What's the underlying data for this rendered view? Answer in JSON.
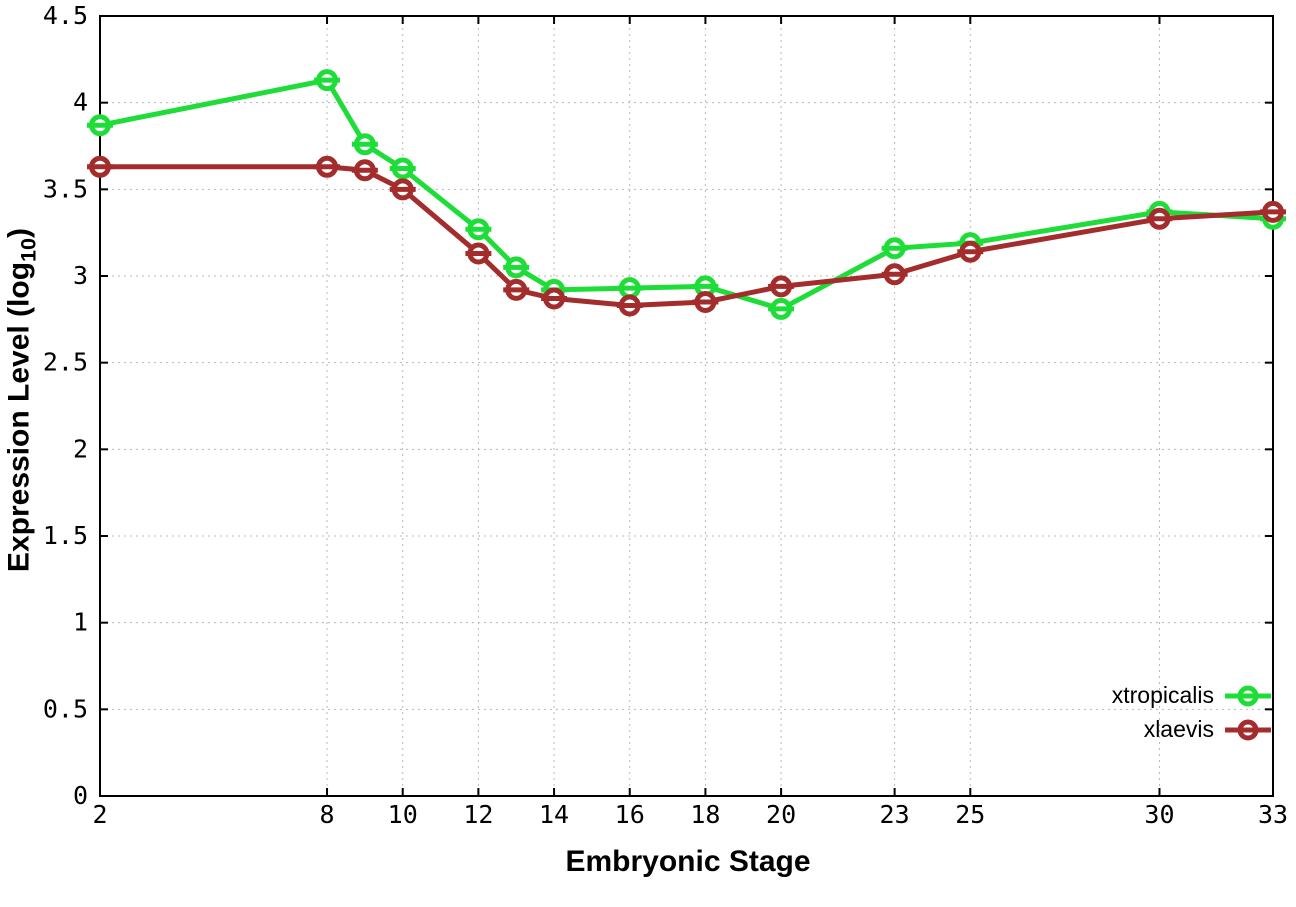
{
  "figure": {
    "background": "#ffffff",
    "frame_color": "#000000",
    "grid_color": "#b8b8b8",
    "tick_label_color": "#000000"
  },
  "axes": {
    "x": {
      "label": "Embryonic Stage",
      "tick_labels": [
        "2",
        "8",
        "10",
        "12",
        "14",
        "16",
        "18",
        "20",
        "23",
        "25",
        "30",
        "33"
      ]
    },
    "y": {
      "label": "Expression Level (log10)",
      "label_parts": {
        "pre": "Expression Level (log",
        "sub": "10",
        "post": ")"
      },
      "tick_labels": [
        "0",
        "0.5",
        "1",
        "1.5",
        "2",
        "2.5",
        "3",
        "3.5",
        "4",
        "4.5"
      ]
    }
  },
  "legend": {
    "items": [
      {
        "label": "xtropicalis",
        "color": "#1fdd38"
      },
      {
        "label": "xlaevis",
        "color": "#a32c2c"
      }
    ]
  },
  "chart_data": {
    "type": "line",
    "title": "",
    "xlabel": "Embryonic Stage",
    "ylabel": "Expression Level (log10)",
    "xlim": [
      2,
      33
    ],
    "ylim": [
      0,
      4.5
    ],
    "xticks": [
      2,
      8,
      10,
      12,
      14,
      16,
      18,
      20,
      23,
      25,
      30,
      33
    ],
    "yticks": [
      0,
      0.5,
      1,
      1.5,
      2,
      2.5,
      3,
      3.5,
      4,
      4.5
    ],
    "grid": true,
    "legend_position": "bottom-right-inside",
    "marker_style": "open-circle-with-horizontal-errorbar-cap",
    "x": [
      2,
      8,
      9,
      10,
      12,
      13,
      14,
      16,
      18,
      20,
      23,
      25,
      30,
      33
    ],
    "series": [
      {
        "name": "xtropicalis",
        "color": "#1fdd38",
        "values": [
          3.87,
          4.13,
          3.76,
          3.62,
          3.27,
          3.05,
          2.92,
          2.93,
          2.94,
          2.81,
          3.16,
          3.19,
          3.37,
          3.33
        ]
      },
      {
        "name": "xlaevis",
        "color": "#a32c2c",
        "values": [
          3.63,
          3.63,
          3.61,
          3.5,
          3.13,
          2.92,
          2.87,
          2.83,
          2.85,
          2.94,
          3.01,
          3.14,
          3.33,
          3.37
        ]
      }
    ]
  }
}
